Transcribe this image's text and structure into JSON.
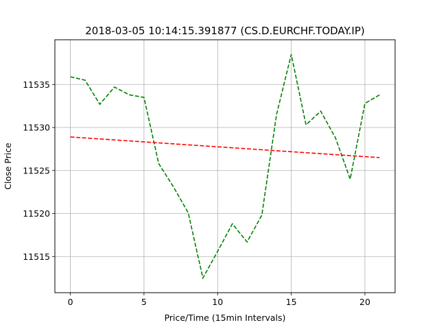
{
  "chart_data": {
    "type": "line",
    "title": "2018-03-05 10:14:15.391877 (CS.D.EURCHF.TODAY.IP)",
    "xlabel": "Price/Time (15min Intervals)",
    "ylabel": "Close Price",
    "xlim": [
      -1.05,
      22.05
    ],
    "ylim": [
      11510.8,
      11540.2
    ],
    "xticks": [
      0,
      5,
      10,
      15,
      20
    ],
    "yticks": [
      11515,
      11520,
      11525,
      11530,
      11535
    ],
    "grid": true,
    "series": [
      {
        "style": "dashed",
        "color": "#008000",
        "x": [
          0,
          1,
          2,
          3,
          4,
          5,
          6,
          7,
          8,
          9,
          10,
          11,
          12,
          13,
          14,
          15,
          16,
          17,
          18,
          19,
          20,
          21
        ],
        "y": [
          11535.9,
          11535.5,
          11532.7,
          11534.7,
          11533.8,
          11533.5,
          11525.8,
          11523.1,
          11520.1,
          11512.5,
          11515.6,
          11518.8,
          11516.7,
          11519.8,
          11531.5,
          11538.5,
          11530.3,
          11531.9,
          11528.8,
          11524.0,
          11532.8,
          11533.8
        ]
      },
      {
        "style": "dashed",
        "color": "#ff0000",
        "x": [
          0,
          21
        ],
        "y": [
          11528.9,
          11526.5
        ]
      }
    ]
  }
}
